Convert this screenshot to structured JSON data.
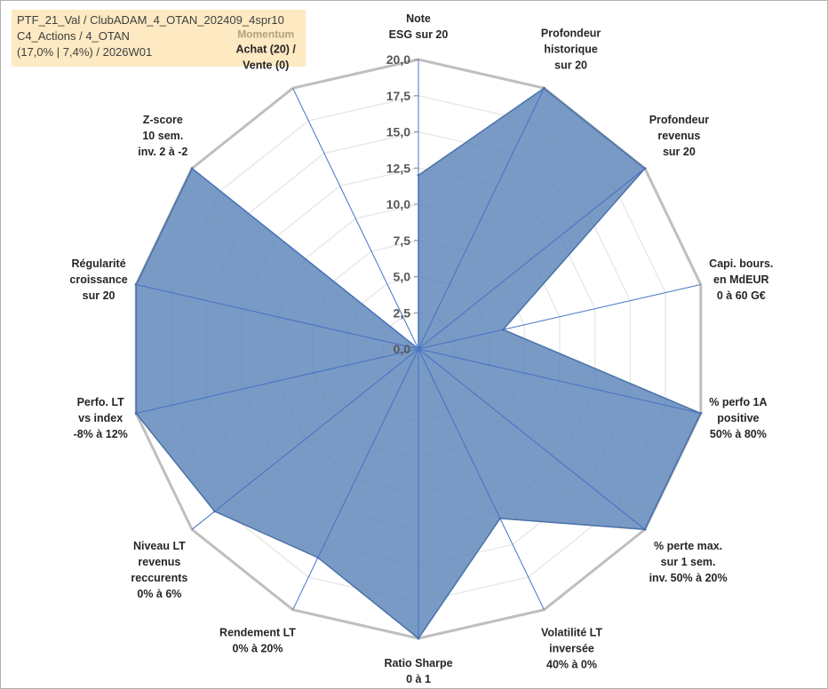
{
  "info": {
    "line1": "PTF_21_Val / ClubADAM_4_OTAN_202409_4spr10",
    "line2": "C4_Actions / 4_OTAN",
    "line3": "(17,0% | 7,4%) / 2026W01"
  },
  "chart_data": {
    "type": "radar",
    "rmax": 20,
    "tick_labels": [
      "0,0",
      "2,5",
      "5,0",
      "7,5",
      "10,0",
      "12,5",
      "15,0",
      "17,5",
      "20,0"
    ],
    "ticks": [
      0,
      2.5,
      5,
      7.5,
      10,
      12.5,
      15,
      17.5,
      20
    ],
    "grid": true,
    "colors": {
      "fill": "#5b84b8",
      "stroke": "#4a72a8",
      "spoke": "#4472c4",
      "frame": "#bfbfbf",
      "grid": "#e4e4e4"
    },
    "annotation": "Momentum",
    "categories": [
      {
        "lines": [
          "Note",
          "ESG sur 20"
        ],
        "value": 12
      },
      {
        "lines": [
          "Profondeur",
          "historique",
          "sur 20"
        ],
        "value": 20
      },
      {
        "lines": [
          "Profondeur",
          "revenus",
          "sur 20"
        ],
        "value": 20
      },
      {
        "lines": [
          "Capi. bours.",
          "en MdEUR",
          "0 à 60 G€"
        ],
        "value": 6
      },
      {
        "lines": [
          "% perfo 1A",
          "positive",
          "50% à 80%"
        ],
        "value": 20
      },
      {
        "lines": [
          "% perte max.",
          "sur 1 sem.",
          "inv. 50% à 20%"
        ],
        "value": 20
      },
      {
        "lines": [
          "Volatilité LT",
          "inversée",
          "40% à 0%"
        ],
        "value": 13
      },
      {
        "lines": [
          "Ratio Sharpe",
          "0 à 1"
        ],
        "value": 20
      },
      {
        "lines": [
          "Rendement LT",
          "0% à 20%"
        ],
        "value": 16
      },
      {
        "lines": [
          "Niveau LT",
          "revenus",
          "reccurents",
          "0% à 6%"
        ],
        "value": 18
      },
      {
        "lines": [
          "Perfo. LT",
          "vs index",
          "-8% à 12%"
        ],
        "value": 20
      },
      {
        "lines": [
          "Régularité",
          "croissance",
          "sur 20"
        ],
        "value": 20
      },
      {
        "lines": [
          "Z-score",
          "10 sem.",
          "inv. 2 à -2"
        ],
        "value": 20
      },
      {
        "lines": [
          "Achat (20) /",
          "Vente (0)"
        ],
        "value": 0
      }
    ]
  }
}
